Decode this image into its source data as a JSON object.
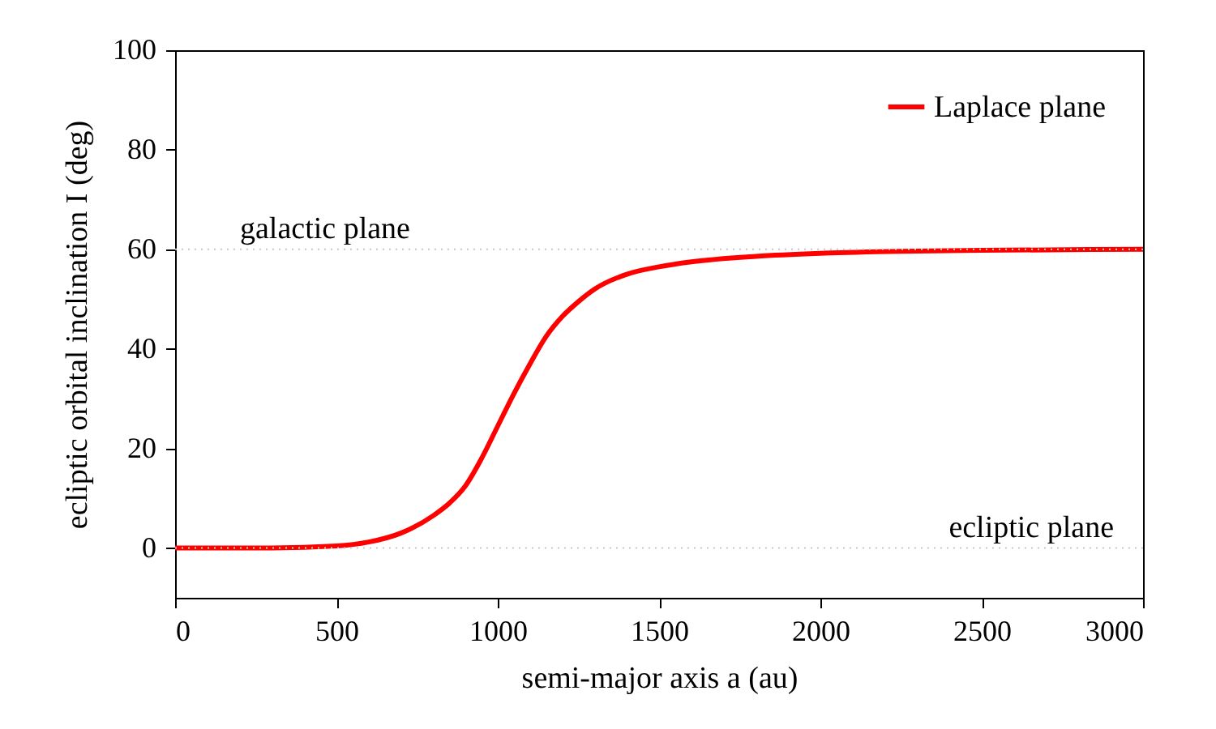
{
  "chart_data": {
    "type": "line",
    "xlabel": "semi-major axis a (au)",
    "ylabel": "ecliptic orbital inclination I (deg)",
    "x": [
      0,
      300,
      500,
      600,
      700,
      800,
      850,
      900,
      950,
      1000,
      1050,
      1100,
      1150,
      1200,
      1250,
      1300,
      1400,
      1500,
      1600,
      1800,
      2000,
      2250,
      2500,
      3000
    ],
    "series": [
      {
        "name": "Laplace plane",
        "color": "#ff0000",
        "values": [
          0,
          0,
          0.4,
          1.2,
          3,
          6.5,
          9,
          12.5,
          18,
          24.5,
          31,
          37,
          42.5,
          46.5,
          49.5,
          52,
          55,
          56.5,
          57.5,
          58.6,
          59.2,
          59.6,
          59.8,
          60
        ]
      }
    ],
    "xlim": [
      0,
      3000
    ],
    "xticks": [
      0,
      500,
      1000,
      1500,
      2000,
      2500,
      3000
    ],
    "ylim": [
      -10,
      100
    ],
    "yticks": [
      0,
      20,
      40,
      60,
      80,
      100
    ],
    "ref_lines": [
      {
        "axis": "y",
        "value": 60,
        "label": "galactic plane",
        "color": "#c8c8c8",
        "line_style": "dotted"
      },
      {
        "axis": "y",
        "value": 0,
        "label": "ecliptic plane",
        "color": "#c8c8c8",
        "line_style": "dotted"
      }
    ],
    "legend": "top right",
    "line_style": "solid",
    "grid": false
  }
}
